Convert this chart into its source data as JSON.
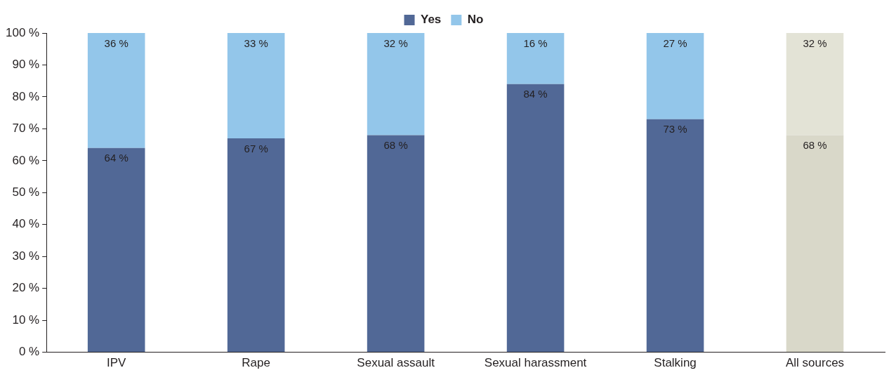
{
  "chart_data": {
    "type": "bar",
    "stacked": true,
    "categories": [
      "IPV",
      "Rape",
      "Sexual assault",
      "Sexual harassment",
      "Stalking",
      "All sources"
    ],
    "series": [
      {
        "name": "Yes",
        "color": "#516896",
        "colors": [
          "#516896",
          "#516896",
          "#516896",
          "#516896",
          "#516896",
          "#d9d8c9"
        ],
        "values": [
          64,
          67,
          68,
          84,
          73,
          68
        ],
        "value_labels": [
          "64 %",
          "67 %",
          "68 %",
          "84 %",
          "73 %",
          "68 %"
        ]
      },
      {
        "name": "No",
        "color": "#93c6ea",
        "colors": [
          "#93c6ea",
          "#93c6ea",
          "#93c6ea",
          "#93c6ea",
          "#93c6ea",
          "#e3e3d6"
        ],
        "values": [
          36,
          33,
          32,
          16,
          27,
          32
        ],
        "value_labels": [
          "36 %",
          "33 %",
          "32 %",
          "16 %",
          "27 %",
          "32 %"
        ]
      }
    ],
    "ylim": [
      0,
      100
    ],
    "yticks": [
      {
        "value": 0,
        "label": "0 %"
      },
      {
        "value": 10,
        "label": "10 %"
      },
      {
        "value": 20,
        "label": "20 %"
      },
      {
        "value": 30,
        "label": "30 %"
      },
      {
        "value": 40,
        "label": "40 %"
      },
      {
        "value": 50,
        "label": "50 %"
      },
      {
        "value": 60,
        "label": "60 %"
      },
      {
        "value": 70,
        "label": "70 %"
      },
      {
        "value": 80,
        "label": "80 %"
      },
      {
        "value": 90,
        "label": "90 %"
      },
      {
        "value": 100,
        "label": "100 %"
      }
    ],
    "grid": false,
    "legend": "top"
  }
}
